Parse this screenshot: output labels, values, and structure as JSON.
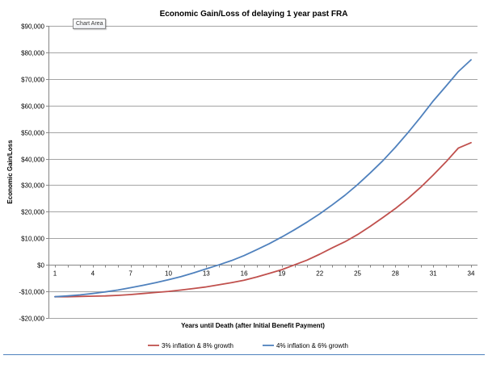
{
  "tooltip": "Chart Area",
  "colors": {
    "series1": "#c0504d",
    "series2": "#4f81bd",
    "gridline": "#868686",
    "axis": "#868686"
  },
  "chart_data": {
    "type": "line",
    "title": "Economic Gain/Loss of delaying 1 year past FRA",
    "xlabel": "Years until Death (after Initial Benefit Payment)",
    "ylabel": "Economic Gain/Loss",
    "ylim": [
      -20000,
      90000
    ],
    "yticks": [
      -20000,
      -10000,
      0,
      10000,
      20000,
      30000,
      40000,
      50000,
      60000,
      70000,
      80000,
      90000
    ],
    "ytick_labels": [
      "-$20,000",
      "-$10,000",
      "$0",
      "$10,000",
      "$20,000",
      "$30,000",
      "$40,000",
      "$50,000",
      "$60,000",
      "$70,000",
      "$80,000",
      "$90,000"
    ],
    "xlim": [
      1,
      34
    ],
    "xticks": [
      1,
      4,
      7,
      10,
      13,
      16,
      19,
      22,
      25,
      28,
      31,
      34
    ],
    "xtick_labels": [
      "1",
      "4",
      "7",
      "10",
      "13",
      "16",
      "19",
      "22",
      "25",
      "28",
      "31",
      "34"
    ],
    "grid": "horizontal",
    "legend_position": "bottom",
    "x": [
      1,
      2,
      3,
      4,
      5,
      6,
      7,
      8,
      9,
      10,
      11,
      12,
      13,
      14,
      15,
      16,
      17,
      18,
      19,
      20,
      21,
      22,
      23,
      24,
      25,
      26,
      27,
      28,
      29,
      30,
      31,
      32,
      33,
      34
    ],
    "series": [
      {
        "name": "3% inflation & 8% growth",
        "color": "#c0504d",
        "values": [
          -12000,
          -12000,
          -11900,
          -11800,
          -11700,
          -11500,
          -11200,
          -10800,
          -10400,
          -10000,
          -9500,
          -8900,
          -8300,
          -7500,
          -6700,
          -5800,
          -4600,
          -3200,
          -1800,
          0,
          1800,
          4000,
          6400,
          8700,
          11400,
          14500,
          17800,
          21200,
          25000,
          29200,
          33800,
          38700,
          44000,
          46000
        ]
      },
      {
        "name": "4% inflation & 6% growth",
        "color": "#4f81bd",
        "values": [
          -12000,
          -11700,
          -11300,
          -10800,
          -10200,
          -9500,
          -8600,
          -7700,
          -6700,
          -5600,
          -4400,
          -3000,
          -1500,
          0,
          1600,
          3500,
          5700,
          8000,
          10500,
          13200,
          16100,
          19200,
          22600,
          26200,
          30200,
          34600,
          39200,
          44300,
          49800,
          55600,
          61700,
          67200,
          72800,
          77200
        ]
      }
    ]
  }
}
